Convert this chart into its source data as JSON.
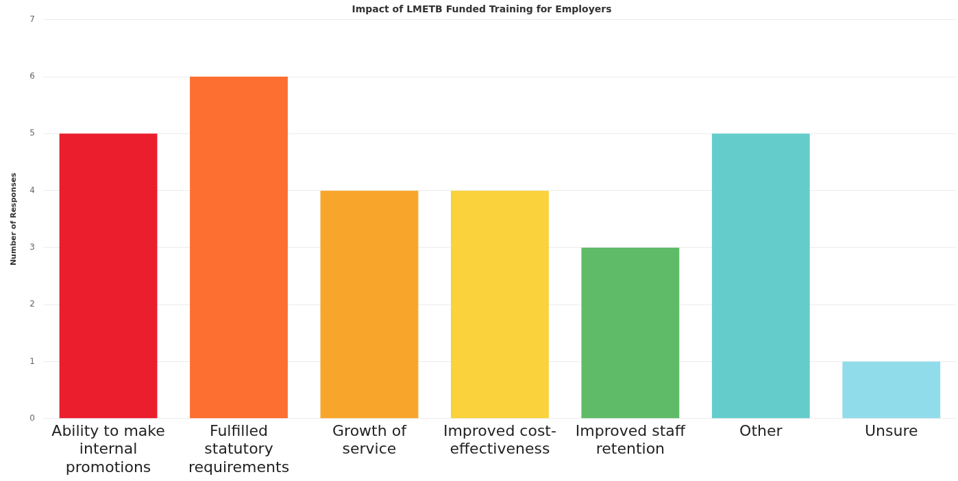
{
  "chart_data": {
    "type": "bar",
    "title": "Impact of LMETB Funded Training for Employers",
    "ylabel": "Number of Responses",
    "categories": [
      "Ability to make internal promotions",
      "Fulfilled statutory requirements",
      "Growth of service",
      "Improved cost-effectiveness",
      "Improved staff retention",
      "Other",
      "Unsure"
    ],
    "values": [
      5,
      6,
      4,
      4,
      3,
      5,
      1
    ],
    "colors": [
      "#eb1e2d",
      "#fd6f30",
      "#f8a62b",
      "#f9d23c",
      "#5fbb68",
      "#64cdcc",
      "#91dceb"
    ],
    "ylim": [
      0,
      7
    ],
    "yticks": [
      0,
      1,
      2,
      3,
      4,
      5,
      6,
      7
    ],
    "grid": "y",
    "legend": false
  }
}
